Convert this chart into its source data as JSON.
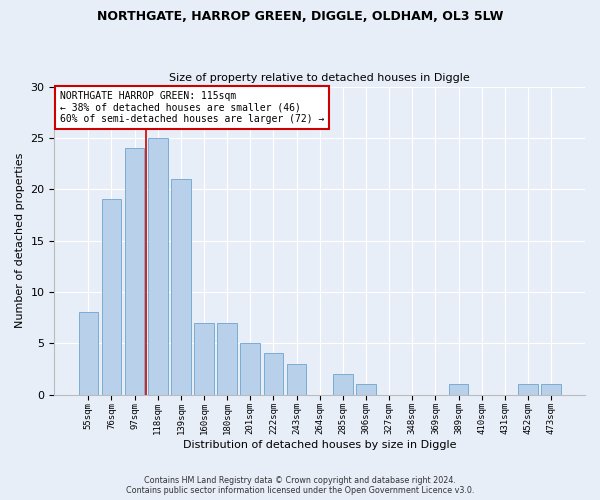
{
  "title1": "NORTHGATE, HARROP GREEN, DIGGLE, OLDHAM, OL3 5LW",
  "title2": "Size of property relative to detached houses in Diggle",
  "xlabel": "Distribution of detached houses by size in Diggle",
  "ylabel": "Number of detached properties",
  "categories": [
    "55sqm",
    "76sqm",
    "97sqm",
    "118sqm",
    "139sqm",
    "160sqm",
    "180sqm",
    "201sqm",
    "222sqm",
    "243sqm",
    "264sqm",
    "285sqm",
    "306sqm",
    "327sqm",
    "348sqm",
    "369sqm",
    "389sqm",
    "410sqm",
    "431sqm",
    "452sqm",
    "473sqm"
  ],
  "values": [
    8,
    19,
    24,
    25,
    21,
    7,
    7,
    5,
    4,
    3,
    0,
    2,
    1,
    0,
    0,
    0,
    1,
    0,
    0,
    1,
    1
  ],
  "bar_color": "#b8d0ea",
  "bar_edge_color": "#7aadd4",
  "vline_color": "#cc0000",
  "vline_pos": 2.5,
  "annotation_text": "NORTHGATE HARROP GREEN: 115sqm\n← 38% of detached houses are smaller (46)\n60% of semi-detached houses are larger (72) →",
  "annotation_box_color": "#ffffff",
  "annotation_box_edge": "#cc0000",
  "ylim": [
    0,
    30
  ],
  "yticks": [
    0,
    5,
    10,
    15,
    20,
    25,
    30
  ],
  "footer1": "Contains HM Land Registry data © Crown copyright and database right 2024.",
  "footer2": "Contains public sector information licensed under the Open Government Licence v3.0.",
  "bg_color": "#e8eef8",
  "plot_bg_color": "#e8eef8"
}
